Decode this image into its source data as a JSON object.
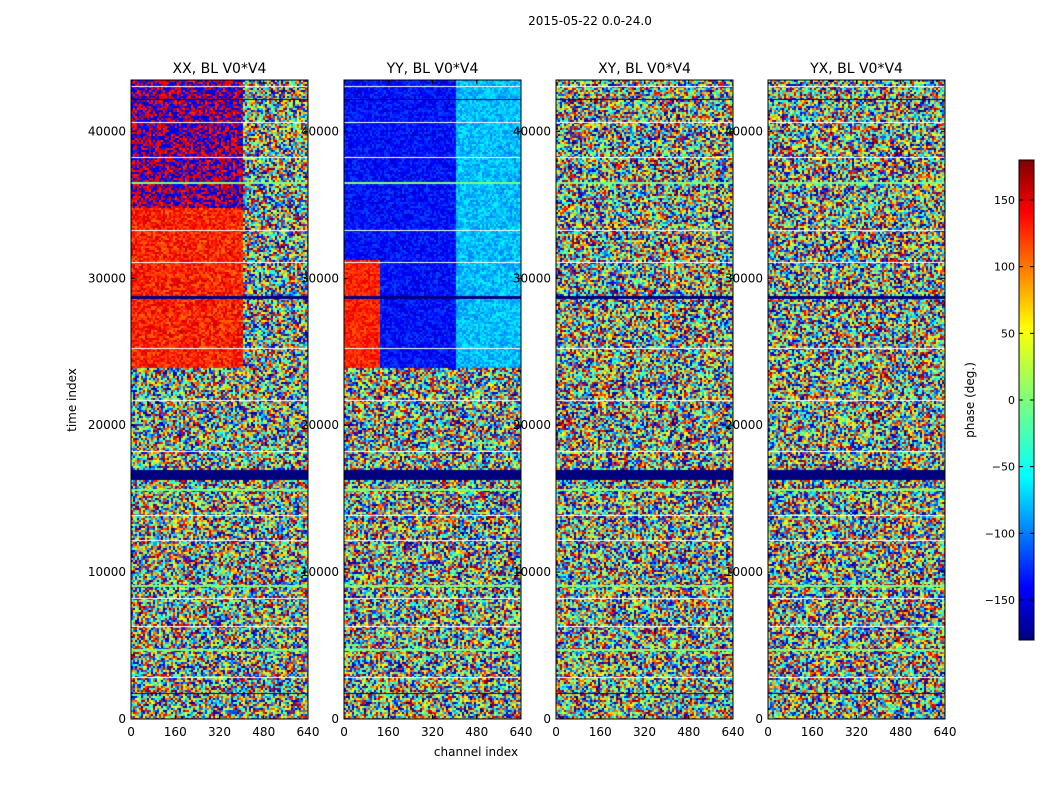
{
  "figure": {
    "title": "2015-05-22 0.0-24.0"
  },
  "chart_data": {
    "type": "heatmap",
    "xlabel": "channel index",
    "ylabel": "time index",
    "x_ticks": [
      "0",
      "160",
      "320",
      "480",
      "640"
    ],
    "x_tick_values": [
      0,
      160,
      320,
      480,
      640
    ],
    "y_ticks": [
      "0",
      "10000",
      "20000",
      "30000",
      "40000"
    ],
    "y_tick_values": [
      0,
      10000,
      20000,
      30000,
      40000
    ],
    "xlim": [
      0,
      640
    ],
    "ylim": [
      0,
      43500
    ],
    "panels": [
      {
        "title": "XX, BL V0*V4"
      },
      {
        "title": "YY, BL V0*V4"
      },
      {
        "title": "XY, BL V0*V4"
      },
      {
        "title": "YX, BL V0*V4"
      }
    ],
    "colorbar": {
      "label": "phase (deg.)",
      "ticks": [
        "150",
        "100",
        "50",
        "0",
        "−50",
        "−100",
        "−150"
      ],
      "tick_values": [
        150,
        100,
        50,
        0,
        -50,
        -100,
        -150
      ],
      "range": [
        -180,
        180
      ]
    }
  }
}
